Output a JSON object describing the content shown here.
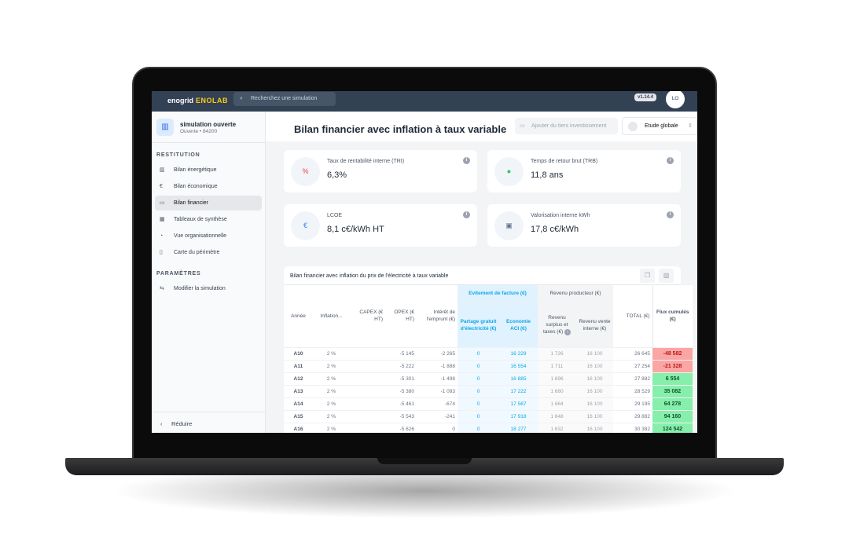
{
  "app": {
    "brand": "enogrid",
    "product": "ENOLAB",
    "version": "v1.14.4",
    "user_initials": "LO",
    "search_placeholder": "Recherchez une simulation"
  },
  "simulation": {
    "name": "simulation ouverte",
    "status": "Ouverte",
    "postcode": "84200"
  },
  "sidebar": {
    "section_restitution": "RESTITUTION",
    "items": [
      {
        "label": "Bilan énergétique",
        "icon": "bar-chart-icon"
      },
      {
        "label": "Bilan économique",
        "icon": "euro-icon"
      },
      {
        "label": "Bilan financier",
        "icon": "money-icon",
        "active": true
      },
      {
        "label": "Tableaux de synthèse",
        "icon": "table-icon"
      },
      {
        "label": "Vue organisationnelle",
        "icon": "pie-icon"
      },
      {
        "label": "Carte du périmètre",
        "icon": "map-icon"
      }
    ],
    "section_parametres": "PARAMÈTRES",
    "param_items": [
      {
        "label": "Modifier la simulation",
        "icon": "swap-icon"
      }
    ],
    "collapse_label": "Réduire"
  },
  "header": {
    "title": "Bilan financier avec inflation à taux variable",
    "add_investor": "Ajouter du tiers investissement",
    "scope_select": "Etude globale"
  },
  "kpis": [
    {
      "label": "Taux de rentabilité interne (TRI)",
      "value": "6,3%",
      "icon": "percent-icon",
      "color": "#ef4444"
    },
    {
      "label": "Temps de retour brut (TRB)",
      "value": "11,8 ans",
      "icon": "clock-icon",
      "color": "#22c55e"
    },
    {
      "label": "LCOE",
      "value": "8,1 c€/kWh HT",
      "icon": "euro-circle-icon",
      "color": "#3b82f6"
    },
    {
      "label": "Valorisation interne kWh",
      "value": "17,8 c€/kWh",
      "icon": "cash-icon",
      "color": "#64748b"
    }
  ],
  "table": {
    "title": "Bilan financier avec inflation du prix de l'électricité à taux variable",
    "group_headers": {
      "avoidance": "Evitement de facture (€)",
      "producer": "Revenu producteur (€)"
    },
    "columns": [
      "Année",
      "Inflation...",
      "CAPEX (€ HT)",
      "OPEX (€ HT)",
      "Intérêt de l'emprunt (€)",
      "Partage gratuit d'électricité (€)",
      "Economie ACI (€)",
      "Revenu surplus et taxes (€)",
      "Revenu vente interne (€)",
      "TOTAL (€)",
      "Flux cumulés (€)"
    ],
    "rows": [
      [
        "A10",
        "2 %",
        "",
        "-5 145",
        "-2 265",
        "0",
        "16 229",
        "1 726",
        "16 100",
        "26 645",
        "-48 582"
      ],
      [
        "A11",
        "2 %",
        "",
        "-5 222",
        "-1 888",
        "0",
        "16 554",
        "1 711",
        "16 100",
        "27 254",
        "-21 328"
      ],
      [
        "A12",
        "2 %",
        "",
        "-5 301",
        "-1 498",
        "0",
        "16 885",
        "1 696",
        "16 100",
        "27 882",
        "6 554"
      ],
      [
        "A13",
        "2 %",
        "",
        "-5 380",
        "-1 093",
        "0",
        "17 222",
        "1 680",
        "16 100",
        "28 529",
        "35 082"
      ],
      [
        "A14",
        "2 %",
        "",
        "-5 461",
        "-674",
        "0",
        "17 567",
        "1 664",
        "16 100",
        "29 195",
        "64 278"
      ],
      [
        "A15",
        "2 %",
        "",
        "-5 543",
        "-241",
        "0",
        "17 918",
        "1 648",
        "16 100",
        "29 882",
        "94 160"
      ],
      [
        "A16",
        "2 %",
        "",
        "-5 626",
        "0",
        "0",
        "18 277",
        "1 632",
        "16 100",
        "30 382",
        "124 542"
      ]
    ]
  }
}
